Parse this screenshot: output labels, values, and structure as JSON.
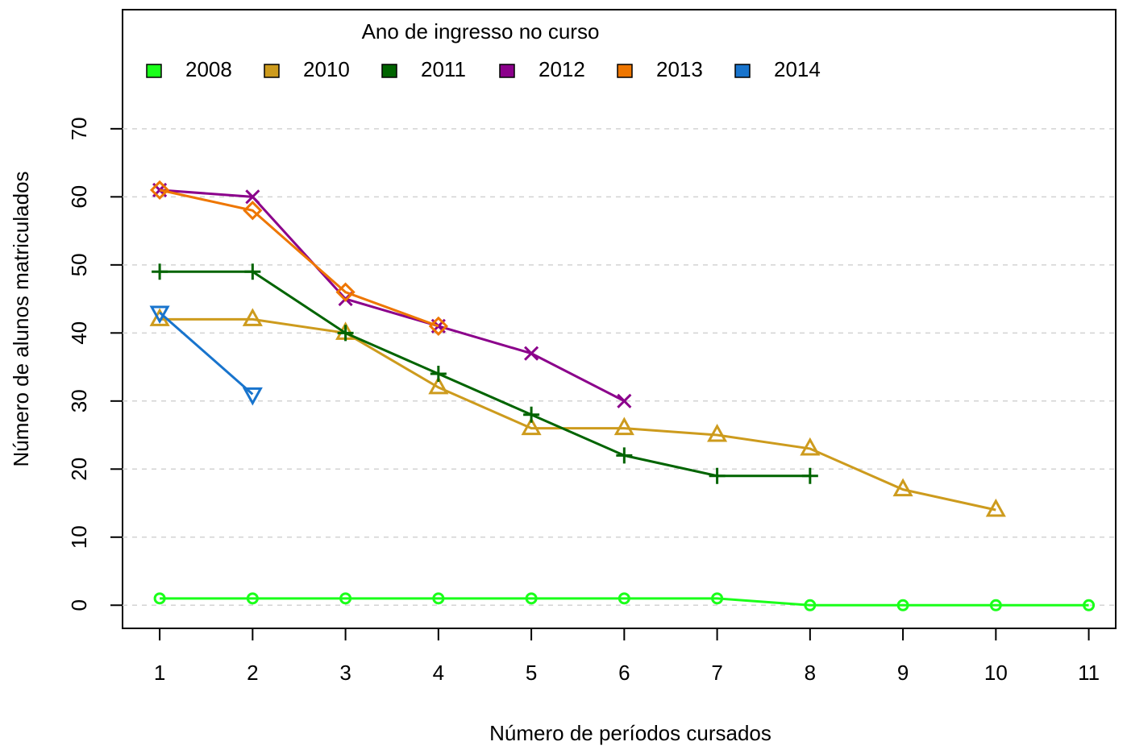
{
  "chart_data": {
    "type": "line",
    "x_label": "Número de períodos cursados",
    "y_label": "Número de alunos matriculados",
    "legend_title": "Ano de ingresso no curso",
    "x": [
      1,
      2,
      3,
      4,
      5,
      6,
      7,
      8,
      9,
      10,
      11
    ],
    "series": [
      {
        "name": "2008",
        "color": "#1aff1a",
        "marker": "circle",
        "values": [
          1,
          1,
          1,
          1,
          1,
          1,
          1,
          0,
          0,
          0,
          0
        ]
      },
      {
        "name": "2010",
        "color": "#cd9b1d",
        "marker": "triangle-up",
        "values": [
          42,
          42,
          40,
          32,
          26,
          26,
          25,
          23,
          17,
          14,
          null
        ]
      },
      {
        "name": "2011",
        "color": "#006400",
        "marker": "plus",
        "values": [
          49,
          49,
          40,
          34,
          28,
          22,
          19,
          19,
          null,
          null,
          null
        ]
      },
      {
        "name": "2012",
        "color": "#8b008b",
        "marker": "cross",
        "values": [
          61,
          60,
          45,
          41,
          37,
          30,
          null,
          null,
          null,
          null,
          null
        ]
      },
      {
        "name": "2013",
        "color": "#ee7600",
        "marker": "diamond",
        "values": [
          61,
          58,
          46,
          41,
          null,
          null,
          null,
          null,
          null,
          null,
          null
        ]
      },
      {
        "name": "2014",
        "color": "#1874cd",
        "marker": "triangle-down",
        "values": [
          43,
          31,
          null,
          null,
          null,
          null,
          null,
          null,
          null,
          null,
          null
        ]
      }
    ],
    "xlim": [
      0.6,
      11.29
    ],
    "ylim": [
      -3.4,
      87.5
    ],
    "xticks": [
      1,
      2,
      3,
      4,
      5,
      6,
      7,
      8,
      9,
      10,
      11
    ],
    "yticks": [
      0,
      10,
      20,
      30,
      40,
      50,
      60,
      70
    ],
    "grid": true
  }
}
